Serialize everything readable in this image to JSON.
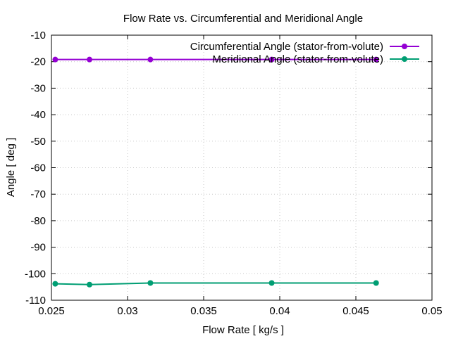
{
  "chart_data": {
    "type": "line",
    "title": "Flow Rate vs. Circumferential and Meridional Angle",
    "xlabel": "Flow Rate [ kg/s ]",
    "ylabel": "Angle [ deg ]",
    "xlim": [
      0.025,
      0.05
    ],
    "ylim": [
      -110,
      -10
    ],
    "xticks": [
      "0.025",
      "0.03",
      "0.035",
      "0.04",
      "0.045",
      "0.05"
    ],
    "xtick_values": [
      0.025,
      0.03,
      0.035,
      0.04,
      0.045,
      0.05
    ],
    "yticks": [
      "-10",
      "-20",
      "-30",
      "-40",
      "-50",
      "-60",
      "-70",
      "-80",
      "-90",
      "-100",
      "-110"
    ],
    "ytick_values": [
      -10,
      -20,
      -30,
      -40,
      -50,
      -60,
      -70,
      -80,
      -90,
      -100,
      -110
    ],
    "grid": true,
    "legend_position": "top-right",
    "x": [
      0.02525,
      0.0275,
      0.0315,
      0.03947,
      0.04633
    ],
    "series": [
      {
        "name": "Circumferential Angle (stator-from-volute)",
        "color": "#9400d3",
        "values": [
          -19.2,
          -19.2,
          -19.2,
          -19.2,
          -19.2
        ]
      },
      {
        "name": "Meridional Angle (stator-from-volute)",
        "color": "#009e73",
        "values": [
          -103.8,
          -104.1,
          -103.5,
          -103.5,
          -103.5
        ]
      }
    ]
  }
}
